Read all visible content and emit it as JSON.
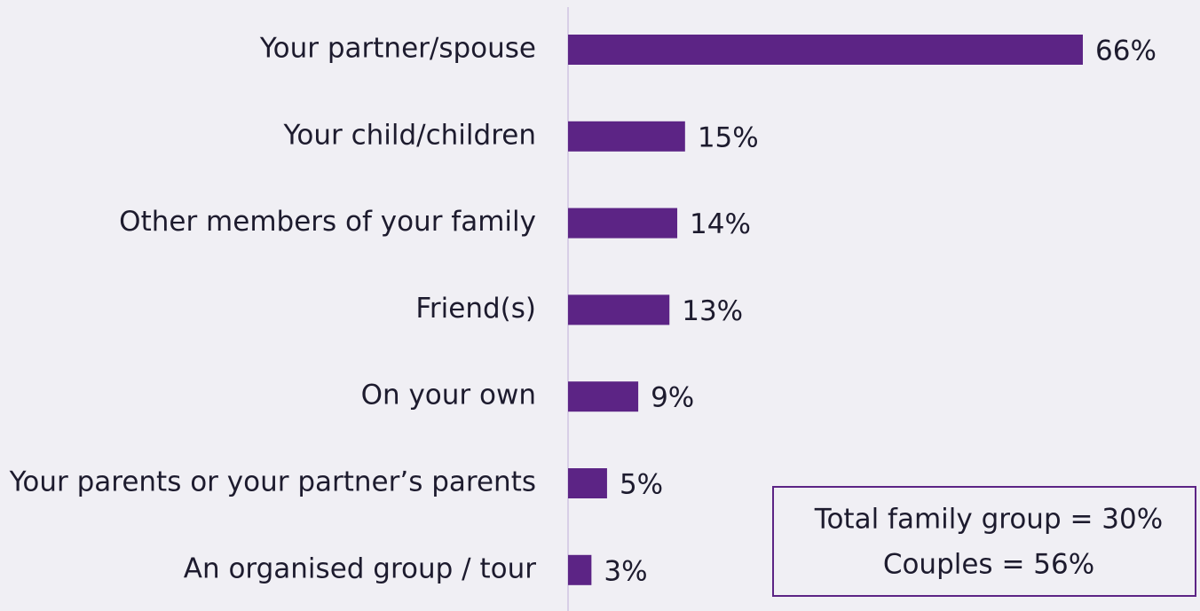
{
  "chart_data": {
    "type": "bar",
    "orientation": "horizontal",
    "categories": [
      "Your partner/spouse",
      "Your child/children",
      "Other members of your family",
      "Friend(s)",
      "On your own",
      "Your parents or your partner’s parents",
      "An organised group / tour"
    ],
    "values": [
      66,
      15,
      14,
      13,
      9,
      5,
      3
    ],
    "value_labels": [
      "66%",
      "15%",
      "14%",
      "13%",
      "9%",
      "5%",
      "3%"
    ],
    "color": "#5c2485",
    "annotations": [
      "Total family group = 30%",
      "Couples = 56%"
    ]
  }
}
